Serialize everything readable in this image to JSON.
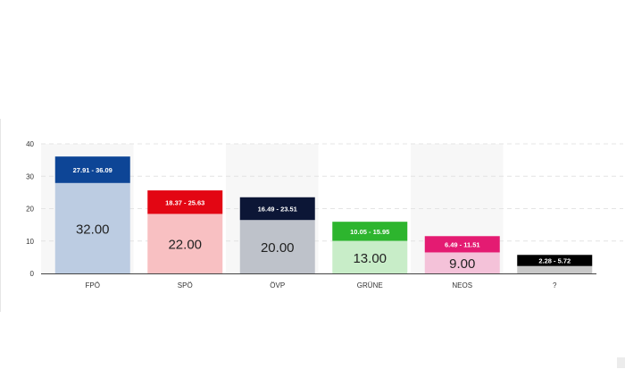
{
  "chart_data": {
    "type": "bar",
    "title": "",
    "xlabel": "",
    "ylabel": "",
    "ylim": [
      0,
      40
    ],
    "yticks": [
      0,
      10,
      20,
      30,
      40
    ],
    "grid": true,
    "categories": [
      "FPÖ",
      "SPÖ",
      "ÖVP",
      "GRÜNE",
      "NEOS",
      "?"
    ],
    "series": [
      {
        "values": [
          32.0,
          22.0,
          20.0,
          13.0,
          9.0,
          null
        ],
        "value_labels": [
          "32.00",
          "22.00",
          "20.00",
          "13.00",
          "9.00",
          ""
        ]
      },
      {
        "low": [
          27.91,
          18.37,
          16.49,
          10.05,
          6.49,
          2.28
        ],
        "high": [
          36.09,
          25.63,
          23.51,
          15.95,
          11.51,
          5.72
        ],
        "range_labels": [
          "27.91 - 36.09",
          "18.37 - 25.63",
          "16.49 - 23.51",
          "10.05 - 15.95",
          "6.49 - 11.51",
          "2.28 - 5.72"
        ]
      }
    ],
    "colors": {
      "dark": [
        "#0d4596",
        "#e30613",
        "#0c1636",
        "#2db52e",
        "#e41b72",
        "#000000"
      ],
      "light": [
        "#bccce2",
        "#f8c0c2",
        "#bec2ca",
        "#c8edc8",
        "#f4c2d9",
        "#c8c8c8"
      ],
      "shaded_column": "#f7f7f7"
    }
  }
}
